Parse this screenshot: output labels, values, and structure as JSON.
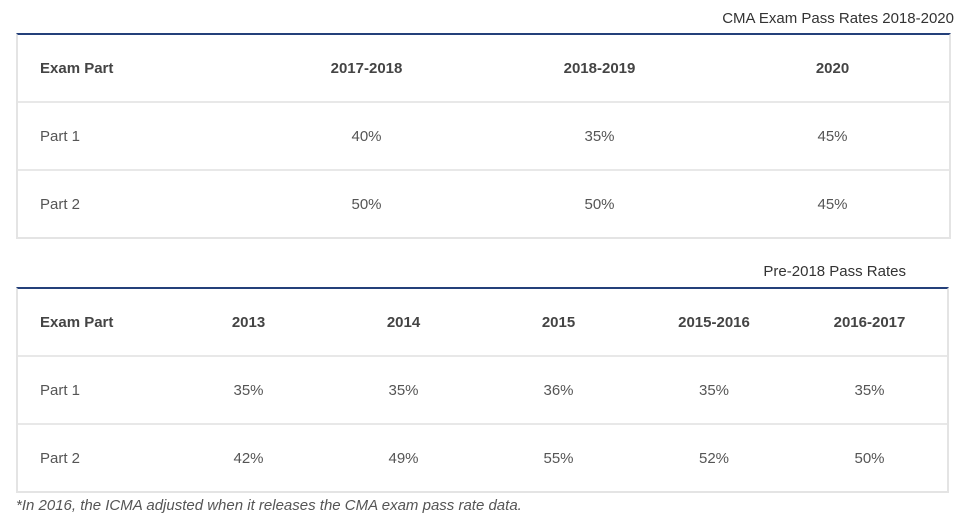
{
  "table1": {
    "caption": "CMA Exam Pass Rates 2018-2020",
    "headers": [
      "Exam Part",
      "2017-2018",
      "2018-2019",
      "2020"
    ],
    "rows": [
      [
        "Part 1",
        "40%",
        "35%",
        "45%"
      ],
      [
        "Part 2",
        "50%",
        "50%",
        "45%"
      ]
    ]
  },
  "table2": {
    "caption": "Pre-2018 Pass Rates",
    "headers": [
      "Exam Part",
      "2013",
      "2014",
      "2015",
      "2015-2016",
      "2016-2017"
    ],
    "rows": [
      [
        "Part 1",
        "35%",
        "35%",
        "36%",
        "35%",
        "35%"
      ],
      [
        "Part 2",
        "42%",
        "49%",
        "55%",
        "52%",
        "50%"
      ]
    ]
  },
  "footnote": "*In 2016, the ICMA adjusted when it releases the CMA exam pass rate data."
}
